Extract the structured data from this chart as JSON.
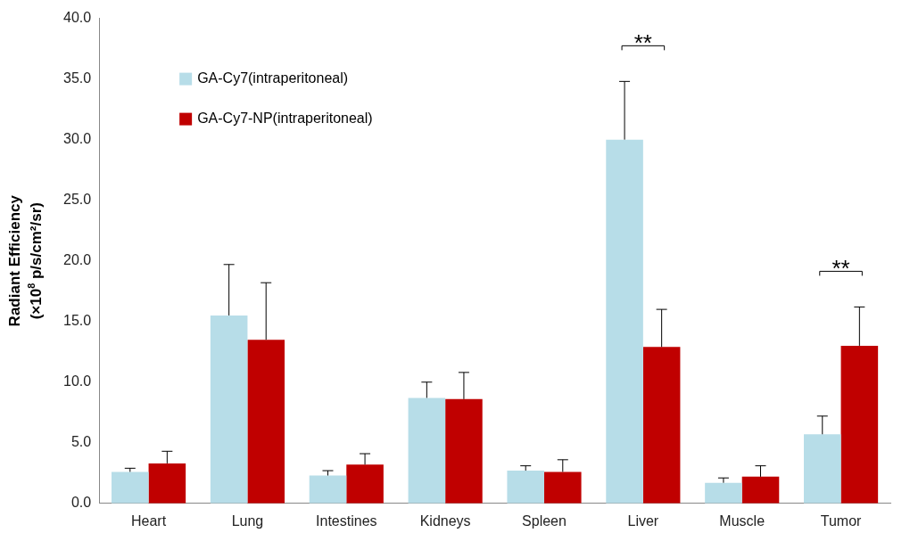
{
  "chart_data": {
    "type": "bar",
    "ylabel": "Radiant Efficiency\n(×10$^{8}$ p/s/cm²/sr)",
    "categories": [
      "Heart",
      "Lung",
      "Intestines",
      "Kidneys",
      "Spleen",
      "Liver",
      "Muscle",
      "Tumor"
    ],
    "series": [
      {
        "name": "GA-Cy7(intraperitoneal)",
        "color": "#b7dde8",
        "values": [
          2.6,
          15.5,
          2.3,
          8.7,
          2.7,
          30.0,
          1.7,
          5.7
        ],
        "errors": [
          [
            2.6,
            2.9
          ],
          [
            15.5,
            19.7
          ],
          [
            2.3,
            2.7
          ],
          [
            8.7,
            10.0
          ],
          [
            2.7,
            3.1
          ],
          [
            30.0,
            34.8
          ],
          [
            1.7,
            2.1
          ],
          [
            5.7,
            7.2
          ]
        ]
      },
      {
        "name": "GA-Cy7-NP(intraperitoneal)",
        "color": "#c00000",
        "values": [
          3.3,
          13.5,
          3.2,
          8.6,
          2.6,
          12.9,
          2.2,
          13.0
        ],
        "errors": [
          [
            3.3,
            4.3
          ],
          [
            13.5,
            18.2
          ],
          [
            3.2,
            4.1
          ],
          [
            8.6,
            10.8
          ],
          [
            2.6,
            3.6
          ],
          [
            12.9,
            16.0
          ],
          [
            2.2,
            3.1
          ],
          [
            13.0,
            16.2
          ]
        ]
      }
    ],
    "ylim": [
      0,
      40
    ],
    "yticks": [
      {
        "value": 0,
        "label": "0.0"
      },
      {
        "value": 5,
        "label": "5.0"
      },
      {
        "value": 10,
        "label": "10.0"
      },
      {
        "value": 15,
        "label": "15.0"
      },
      {
        "value": 20,
        "label": "20.0"
      },
      {
        "value": 25,
        "label": "25.0"
      },
      {
        "value": 30,
        "label": "30.0"
      },
      {
        "value": 35,
        "label": "35.0"
      },
      {
        "value": 40,
        "label": "40.0"
      }
    ],
    "annotations": [
      "**",
      "**"
    ],
    "legend": "top left",
    "grid": false
  }
}
